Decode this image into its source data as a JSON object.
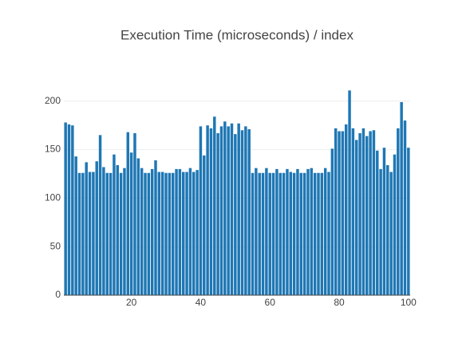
{
  "chart_data": {
    "type": "bar",
    "title": "Execution Time (microseconds) / index",
    "x": [
      1,
      2,
      3,
      4,
      5,
      6,
      7,
      8,
      9,
      10,
      11,
      12,
      13,
      14,
      15,
      16,
      17,
      18,
      19,
      20,
      21,
      22,
      23,
      24,
      25,
      26,
      27,
      28,
      29,
      30,
      31,
      32,
      33,
      34,
      35,
      36,
      37,
      38,
      39,
      40,
      41,
      42,
      43,
      44,
      45,
      46,
      47,
      48,
      49,
      50,
      51,
      52,
      53,
      54,
      55,
      56,
      57,
      58,
      59,
      60,
      61,
      62,
      63,
      64,
      65,
      66,
      67,
      68,
      69,
      70,
      71,
      72,
      73,
      74,
      75,
      76,
      77,
      78,
      79,
      80,
      81,
      82,
      83,
      84,
      85,
      86,
      87,
      88,
      89,
      90,
      91,
      92,
      93,
      94,
      95,
      96,
      97,
      98,
      99,
      100
    ],
    "values": [
      178,
      176,
      175,
      143,
      126,
      126,
      137,
      127,
      127,
      138,
      165,
      132,
      126,
      126,
      145,
      134,
      126,
      131,
      168,
      147,
      167,
      141,
      131,
      126,
      126,
      130,
      139,
      127,
      127,
      126,
      126,
      126,
      130,
      130,
      127,
      127,
      131,
      127,
      129,
      174,
      144,
      175,
      172,
      184,
      167,
      174,
      179,
      174,
      177,
      166,
      177,
      170,
      174,
      171,
      126,
      131,
      126,
      126,
      131,
      126,
      126,
      130,
      126,
      126,
      130,
      127,
      126,
      130,
      126,
      126,
      130,
      131,
      126,
      126,
      126,
      131,
      127,
      151,
      172,
      169,
      169,
      176,
      211,
      172,
      160,
      167,
      172,
      164,
      169,
      170,
      149,
      130,
      152,
      134,
      127,
      145,
      172,
      199,
      180,
      152
    ],
    "color": "#1f77b4",
    "xlim": [
      0.5,
      100.5
    ],
    "xticks": [
      20,
      40,
      60,
      80,
      100
    ],
    "ylim": [
      0,
      222
    ],
    "yticks": [
      0,
      50,
      100,
      150,
      200
    ],
    "grid": true
  }
}
